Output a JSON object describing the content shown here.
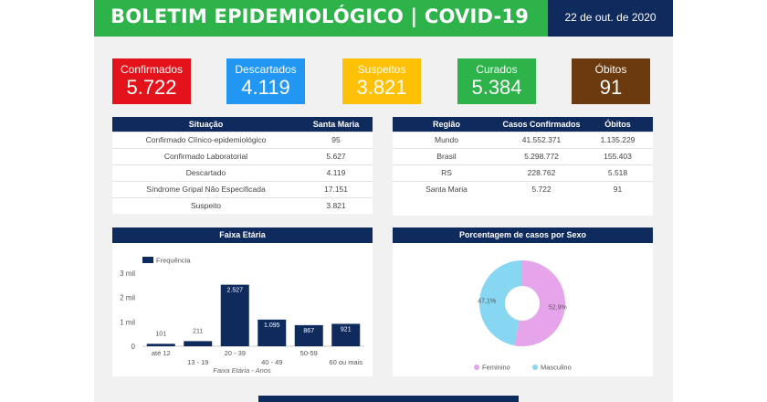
{
  "header": {
    "title": "BOLETIM EPIDEMIOLÓGICO | COVID-19",
    "date": "22 de out. de 2020",
    "colors": {
      "green": "#2db34a",
      "navy": "#0f2a5c"
    }
  },
  "stats": [
    {
      "label": "Confirmados",
      "value": "5.722",
      "bg": "#e3121b",
      "fg": "#ffffff"
    },
    {
      "label": "Descartados",
      "value": "4.119",
      "bg": "#2196f3",
      "fg": "#ffffff"
    },
    {
      "label": "Suspeitos",
      "value": "3.821",
      "bg": "#ffc107",
      "fg": "#ffffff"
    },
    {
      "label": "Curados",
      "value": "5.384",
      "bg": "#2db34a",
      "fg": "#ffffff"
    },
    {
      "label": "Óbitos",
      "value": "91",
      "bg": "#6b3a0f",
      "fg": "#ffffff"
    }
  ],
  "situacao_table": {
    "headers": [
      "Situação",
      "Santa Maria"
    ],
    "rows": [
      [
        "Confirmado Clínico-epidemiológico",
        "95"
      ],
      [
        "Confirmado Laboratorial",
        "5.627"
      ],
      [
        "Descartado",
        "4.119"
      ],
      [
        "Síndrome Gripal Não Especificada",
        "17.151"
      ],
      [
        "Suspeito",
        "3.821"
      ]
    ]
  },
  "regiao_table": {
    "headers": [
      "Região",
      "Casos Confirmados",
      "Óbitos"
    ],
    "rows": [
      [
        "Mundo",
        "41.552.371",
        "1.135.229"
      ],
      [
        "Brasil",
        "5.298.772",
        "155.403"
      ],
      [
        "RS",
        "228.762",
        "5.518"
      ],
      [
        "Santa Maria",
        "5.722",
        "91"
      ]
    ]
  },
  "age_panel": {
    "title": "Faixa Etária",
    "legend": "Frequência",
    "xlabel": "Faixa Etária - Anos"
  },
  "sex_panel": {
    "title": "Porcentagem de casos por Sexo"
  },
  "chart_data": [
    {
      "type": "bar",
      "title": "Faixa Etária",
      "xlabel": "Faixa Etária - Anos",
      "ylabel": "",
      "categories": [
        "até 12",
        "13 - 19",
        "20 - 39",
        "40 - 49",
        "50-59",
        "60 ou mais"
      ],
      "series": [
        {
          "name": "Frequência",
          "values": [
            101,
            211,
            2527,
            1095,
            867,
            921
          ],
          "labels": [
            "101",
            "211",
            "2.527",
            "1.095",
            "867",
            "921"
          ],
          "color": "#0f2a5c"
        }
      ],
      "yticks": [
        0,
        1000,
        2000,
        3000
      ],
      "ytick_labels": [
        "0",
        "1 mil",
        "2 mil",
        "3 mil"
      ],
      "ylim": [
        0,
        3000
      ],
      "grid": false,
      "legend_position": "top-left"
    },
    {
      "type": "pie",
      "title": "Porcentagem de casos por Sexo",
      "donut": true,
      "slices": [
        {
          "name": "Feminino",
          "value": 52.9,
          "label": "52,9%",
          "color": "#e6a4ea"
        },
        {
          "name": "Masculino",
          "value": 47.1,
          "label": "47,1%",
          "color": "#87d6f2"
        }
      ],
      "legend_position": "bottom"
    }
  ]
}
